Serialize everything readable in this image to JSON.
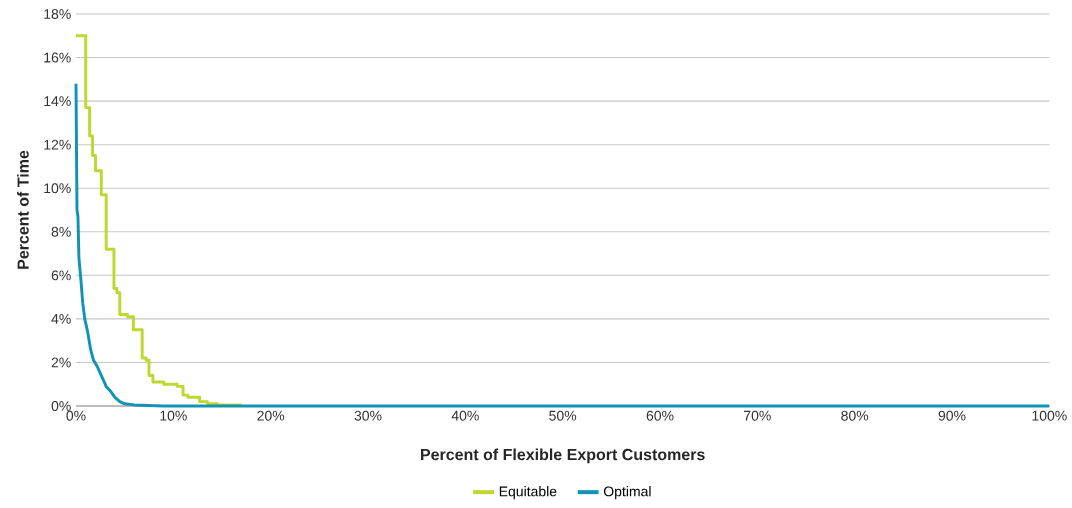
{
  "chart_data": {
    "type": "line",
    "xlabel": "Percent of Flexible Export Customers",
    "ylabel": "Percent of Time",
    "series": [
      {
        "name": "Equitable",
        "type": "step",
        "color": "#bfd730",
        "x": [
          0,
          1.0,
          1.4,
          1.7,
          2.0,
          2.6,
          3.1,
          3.9,
          4.2,
          4.5,
          5.3,
          5.9,
          6.8,
          7.2,
          7.5,
          7.9,
          9.0,
          10.4,
          11.0,
          11.5,
          12.7,
          13.5,
          14.5,
          16.9
        ],
        "values": [
          17,
          13.7,
          12.4,
          11.5,
          10.8,
          9.7,
          7.2,
          5.4,
          5.2,
          4.2,
          4.1,
          3.5,
          2.2,
          2.1,
          1.4,
          1.1,
          1.0,
          0.9,
          0.5,
          0.4,
          0.2,
          0.1,
          0.05,
          0
        ]
      },
      {
        "name": "Optimal",
        "type": "line",
        "color": "#1193b5",
        "x": [
          0,
          0.1,
          0.2,
          0.3,
          0.5,
          0.7,
          0.9,
          1.2,
          1.5,
          1.8,
          2.2,
          2.7,
          3.1,
          3.6,
          4.0,
          4.5,
          5.0,
          6.0,
          7.5,
          9,
          100
        ],
        "values": [
          14.8,
          9,
          8.7,
          6.8,
          5.8,
          4.7,
          4.0,
          3.4,
          2.6,
          2.1,
          1.8,
          1.3,
          0.9,
          0.65,
          0.4,
          0.2,
          0.1,
          0.05,
          0.02,
          0,
          0
        ]
      }
    ],
    "xlim": [
      0,
      100
    ],
    "xticks": [
      {
        "value": 0,
        "label": "0%"
      },
      {
        "value": 10,
        "label": "10%"
      },
      {
        "value": 20,
        "label": "20%"
      },
      {
        "value": 30,
        "label": "30%"
      },
      {
        "value": 40,
        "label": "40%"
      },
      {
        "value": 50,
        "label": "50%"
      },
      {
        "value": 60,
        "label": "60%"
      },
      {
        "value": 70,
        "label": "70%"
      },
      {
        "value": 80,
        "label": "80%"
      },
      {
        "value": 90,
        "label": "90%"
      },
      {
        "value": 100,
        "label": "100%"
      }
    ],
    "ylim": [
      0,
      18
    ],
    "yticks": [
      {
        "value": 0,
        "label": "0%"
      },
      {
        "value": 2,
        "label": "2%"
      },
      {
        "value": 4,
        "label": "4%"
      },
      {
        "value": 6,
        "label": "6%"
      },
      {
        "value": 8,
        "label": "8%"
      },
      {
        "value": 10,
        "label": "10%"
      },
      {
        "value": 12,
        "label": "12%"
      },
      {
        "value": 14,
        "label": "14%"
      },
      {
        "value": 16,
        "label": "16%"
      },
      {
        "value": 18,
        "label": "18%"
      }
    ],
    "grid": "y",
    "legend": "bottom",
    "marker": "none",
    "line_style": "solid"
  }
}
